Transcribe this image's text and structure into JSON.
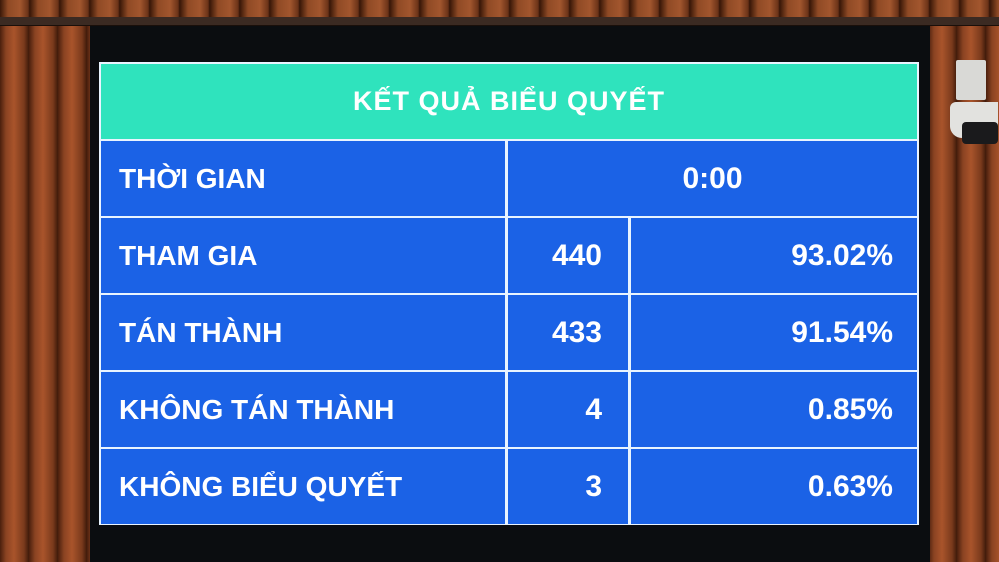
{
  "board": {
    "title": "KẾT QUẢ BIỂU QUYẾT",
    "colors": {
      "header": "#2fe3bd",
      "cell": "#1b62e6",
      "text": "#ffffff"
    },
    "time": {
      "label": "THỜI GIAN",
      "value": "0:00"
    },
    "rows": [
      {
        "label": "THAM GIA",
        "count": "440",
        "percent": "93.02%"
      },
      {
        "label": "TÁN THÀNH",
        "count": "433",
        "percent": "91.54%"
      },
      {
        "label": "KHÔNG TÁN THÀNH",
        "count": "4",
        "percent": "0.85%"
      },
      {
        "label": "KHÔNG BIỂU QUYẾT",
        "count": "3",
        "percent": "0.63%"
      }
    ]
  }
}
